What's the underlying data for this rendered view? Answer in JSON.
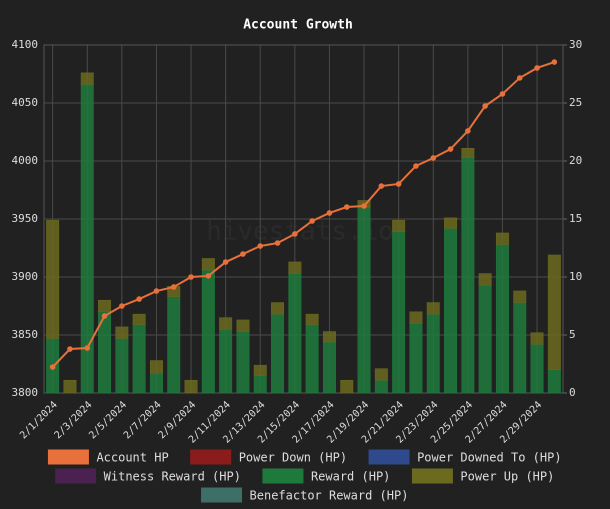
{
  "chart_data": {
    "type": "bar-line",
    "title": "Account Growth",
    "watermark": "hivestats.io",
    "categories": [
      "2/1/2024",
      null,
      "2/3/2024",
      null,
      "2/5/2024",
      null,
      "2/7/2024",
      null,
      "2/9/2024",
      null,
      "2/11/2024",
      null,
      "2/13/2024",
      null,
      "2/15/2024",
      null,
      "2/17/2024",
      null,
      "2/19/2024",
      null,
      "2/21/2024",
      null,
      "2/23/2024",
      null,
      "2/25/2024",
      null,
      "2/27/2024",
      null,
      "2/29/2024",
      null
    ],
    "ylim": [
      3800,
      4100
    ],
    "yticks": [
      3800,
      3850,
      3900,
      3950,
      4000,
      4050,
      4100
    ],
    "y2lim": [
      0,
      30
    ],
    "y2ticks": [
      0,
      5,
      10,
      15,
      20,
      25,
      30
    ],
    "grid": true,
    "legend": "bottom",
    "series": [
      {
        "name": "Account HP",
        "type": "line",
        "axis": "y",
        "color": "#e8703a",
        "values": [
          3822.4,
          3837.9,
          3838.8,
          3866.4,
          3875.0,
          3881.0,
          3887.9,
          3891.4,
          3900.0,
          3900.9,
          3912.9,
          3919.8,
          3926.7,
          3929.3,
          3937.1,
          3948.3,
          3955.2,
          3960.3,
          3961.2,
          3978.4,
          3980.2,
          3995.7,
          4002.6,
          4010.3,
          4025.9,
          4047.4,
          4057.8,
          4071.6,
          4080.2,
          4085.3
        ]
      },
      {
        "name": "Power Down (HP)",
        "type": "bar",
        "axis": "y2",
        "color": "#8b1c1c",
        "values": [
          0,
          0,
          0,
          0,
          0,
          0,
          0,
          0,
          0,
          0,
          0,
          0,
          0,
          0,
          0,
          0,
          0,
          0,
          0,
          0,
          0,
          0,
          0,
          0,
          0,
          0,
          0,
          0,
          0,
          0
        ]
      },
      {
        "name": "Power Downed To (HP)",
        "type": "bar",
        "axis": "y2",
        "color": "#2e4a8c",
        "values": [
          0,
          0,
          0,
          0,
          0,
          0,
          0,
          0,
          0,
          0,
          0,
          0,
          0,
          0,
          0,
          0,
          0,
          0,
          0,
          0,
          0,
          0,
          0,
          0,
          0,
          0,
          0,
          0,
          0,
          0
        ]
      },
      {
        "name": "Witness Reward (HP)",
        "type": "bar",
        "axis": "y2",
        "color": "#4a2150",
        "values": [
          0,
          0,
          0,
          0,
          0,
          0,
          0,
          0,
          0,
          0,
          0,
          0,
          0,
          0,
          0,
          0,
          0,
          0,
          0,
          0,
          0,
          0,
          0,
          0,
          0,
          0,
          0,
          0,
          0,
          0
        ]
      },
      {
        "name": "Reward (HP)",
        "type": "bar",
        "axis": "y2",
        "color": "#1e7a3c",
        "values": [
          4.7,
          0,
          26.6,
          7.0,
          4.7,
          5.9,
          1.7,
          8.3,
          0,
          10.6,
          5.5,
          5.3,
          1.5,
          6.8,
          10.3,
          5.9,
          4.4,
          0,
          16.0,
          1.1,
          13.9,
          6.0,
          6.8,
          14.2,
          20.3,
          9.3,
          12.8,
          7.8,
          4.2,
          2.0
        ]
      },
      {
        "name": "Power Up (HP)",
        "type": "bar",
        "axis": "y2",
        "color": "#6b6a1e",
        "values": [
          10.2,
          1.1,
          1.0,
          1.0,
          1.0,
          0.9,
          1.1,
          0.9,
          1.1,
          1.0,
          1.0,
          1.0,
          0.9,
          1.0,
          1.0,
          0.9,
          0.9,
          1.1,
          0.6,
          1.0,
          1.0,
          1.0,
          1.0,
          0.9,
          0.8,
          1.0,
          1.0,
          1.0,
          1.0,
          9.9
        ]
      },
      {
        "name": "Benefactor Reward (HP)",
        "type": "bar",
        "axis": "y2",
        "color": "#3d6e68",
        "values": [
          0,
          0,
          0,
          0,
          0,
          0,
          0,
          0,
          0,
          0,
          0,
          0,
          0,
          0,
          0,
          0,
          0,
          0,
          0,
          0,
          0,
          0,
          0,
          0,
          0,
          0,
          0,
          0,
          0,
          0
        ]
      }
    ]
  }
}
